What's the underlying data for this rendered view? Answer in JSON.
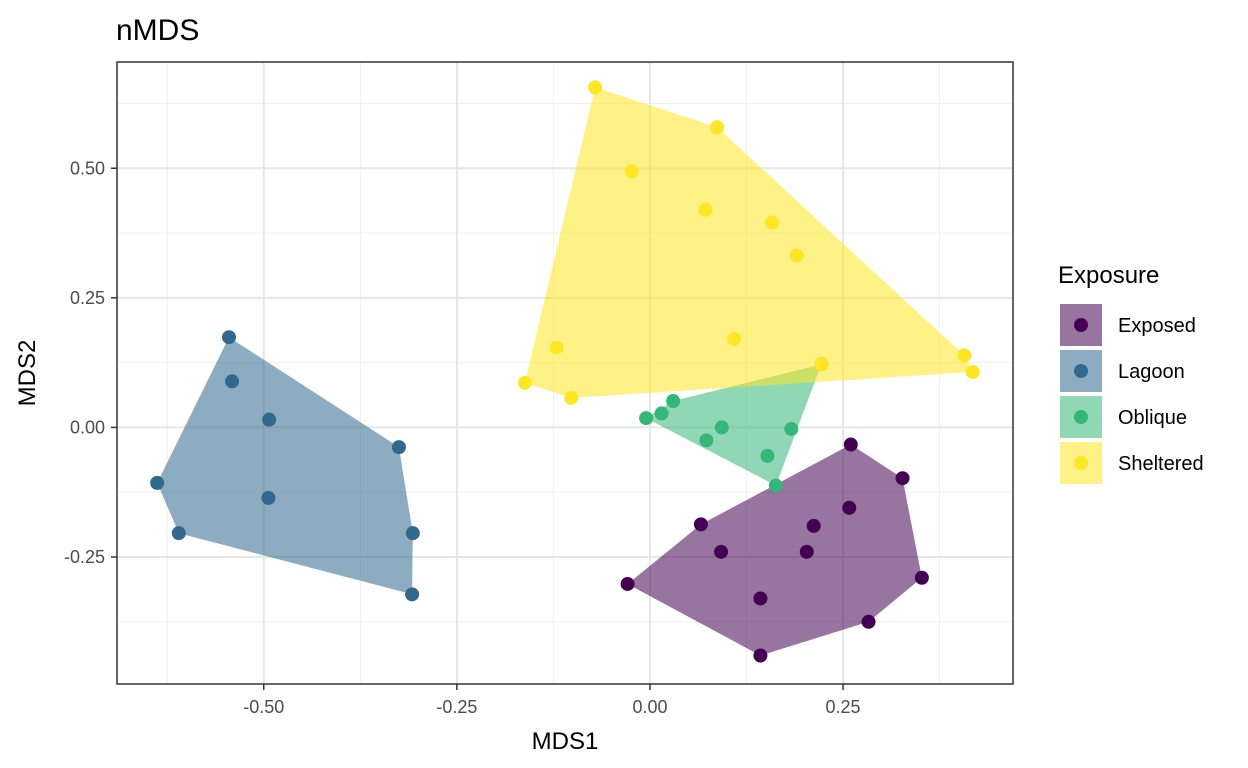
{
  "chart_data": {
    "type": "scatter",
    "title": "nMDS",
    "xlabel": "MDS1",
    "ylabel": "MDS2",
    "xlim": [
      -0.69,
      0.47
    ],
    "ylim": [
      -0.495,
      0.705
    ],
    "x_ticks": [
      -0.5,
      -0.25,
      0.0,
      0.25
    ],
    "x_tick_labels": [
      "-0.50",
      "-0.25",
      "0.00",
      "0.25"
    ],
    "y_ticks": [
      -0.25,
      0.0,
      0.25,
      0.5
    ],
    "y_tick_labels": [
      "-0.25",
      "0.00",
      "0.25",
      "0.50"
    ],
    "grid": true,
    "legend": {
      "title": "Exposure",
      "position": "right"
    },
    "hull_opacity": 0.55,
    "series": [
      {
        "name": "Exposed",
        "color": "#440154",
        "points": [
          [
            0.26,
            -0.033
          ],
          [
            0.327,
            -0.098
          ],
          [
            0.258,
            -0.155
          ],
          [
            0.212,
            -0.19
          ],
          [
            0.066,
            -0.187
          ],
          [
            0.092,
            -0.24
          ],
          [
            0.203,
            -0.24
          ],
          [
            0.352,
            -0.29
          ],
          [
            -0.029,
            -0.302
          ],
          [
            0.143,
            -0.33
          ],
          [
            0.283,
            -0.375
          ],
          [
            0.143,
            -0.44
          ]
        ],
        "hull": [
          [
            0.26,
            -0.033
          ],
          [
            0.327,
            -0.098
          ],
          [
            0.352,
            -0.29
          ],
          [
            0.283,
            -0.375
          ],
          [
            0.143,
            -0.44
          ],
          [
            -0.029,
            -0.302
          ],
          [
            0.066,
            -0.187
          ]
        ]
      },
      {
        "name": "Lagoon",
        "color": "#31688E",
        "points": [
          [
            -0.545,
            0.174
          ],
          [
            -0.541,
            0.089
          ],
          [
            -0.493,
            0.015
          ],
          [
            -0.325,
            -0.038
          ],
          [
            -0.638,
            -0.107
          ],
          [
            -0.494,
            -0.136
          ],
          [
            -0.307,
            -0.204
          ],
          [
            -0.61,
            -0.204
          ],
          [
            -0.308,
            -0.322
          ]
        ],
        "hull": [
          [
            -0.545,
            0.174
          ],
          [
            -0.325,
            -0.038
          ],
          [
            -0.307,
            -0.204
          ],
          [
            -0.308,
            -0.322
          ],
          [
            -0.61,
            -0.204
          ],
          [
            -0.638,
            -0.107
          ]
        ]
      },
      {
        "name": "Oblique",
        "color": "#35B779",
        "points": [
          [
            0.222,
            0.122
          ],
          [
            0.03,
            0.051
          ],
          [
            0.015,
            0.027
          ],
          [
            -0.005,
            0.018
          ],
          [
            0.093,
            0.0
          ],
          [
            0.183,
            -0.003
          ],
          [
            0.073,
            -0.025
          ],
          [
            0.152,
            -0.055
          ],
          [
            0.163,
            -0.112
          ]
        ],
        "hull": [
          [
            0.222,
            0.122
          ],
          [
            0.163,
            -0.112
          ],
          [
            -0.005,
            0.018
          ],
          [
            0.03,
            0.051
          ]
        ]
      },
      {
        "name": "Sheltered",
        "color": "#FDE725",
        "points": [
          [
            -0.071,
            0.656
          ],
          [
            0.087,
            0.579
          ],
          [
            -0.024,
            0.494
          ],
          [
            0.072,
            0.42
          ],
          [
            0.158,
            0.395
          ],
          [
            0.19,
            0.332
          ],
          [
            0.109,
            0.171
          ],
          [
            -0.121,
            0.154
          ],
          [
            0.407,
            0.139
          ],
          [
            0.418,
            0.107
          ],
          [
            -0.162,
            0.086
          ],
          [
            -0.102,
            0.057
          ],
          [
            0.222,
            0.122
          ]
        ],
        "hull": [
          [
            -0.071,
            0.656
          ],
          [
            0.087,
            0.579
          ],
          [
            0.407,
            0.139
          ],
          [
            0.418,
            0.107
          ],
          [
            -0.102,
            0.057
          ],
          [
            -0.162,
            0.086
          ]
        ]
      }
    ]
  }
}
